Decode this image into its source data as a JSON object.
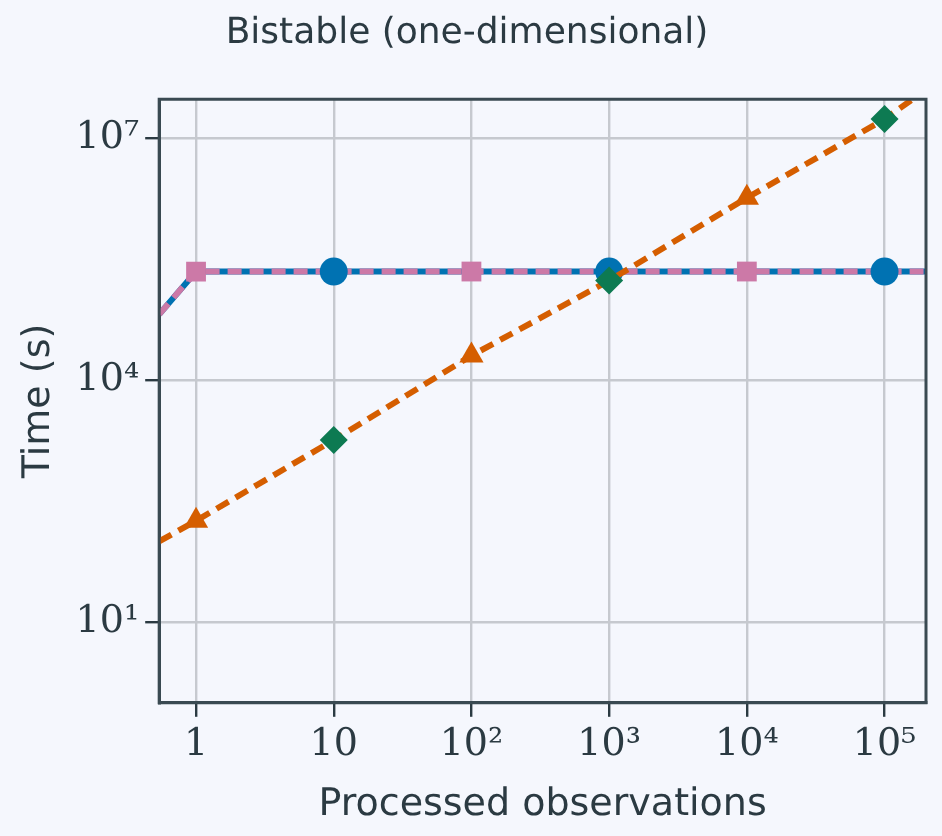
{
  "chart_data": {
    "type": "line",
    "title": "Bistable (one-dimensional)",
    "xlabel": "Processed observations",
    "ylabel": "Time (s)",
    "log": "xy",
    "grid": true,
    "xlim": [
      0.54,
      200000
    ],
    "ylim": [
      1,
      30000000
    ],
    "xticks": [
      1,
      10,
      {
        "value": 100,
        "label": "10²"
      },
      {
        "value": 1000,
        "label": "10³"
      },
      {
        "value": 10000,
        "label": "10⁴"
      },
      {
        "value": 100000,
        "label": "10⁵"
      }
    ],
    "yticks": [
      {
        "value": 10,
        "label": "10¹"
      },
      {
        "value": 10000,
        "label": "10⁴"
      },
      {
        "value": 10000000,
        "label": "10⁷"
      }
    ],
    "series": [
      {
        "type": "line",
        "color": "#0072b2",
        "line_style": "solid",
        "marker": "none",
        "x": [
          0.54,
          1,
          100000,
          200000
        ],
        "values": [
          65000,
          220000,
          220000,
          220000
        ]
      },
      {
        "type": "line",
        "color": "#cc79a7",
        "line_style": "dashed",
        "marker": "none",
        "x": [
          0.54,
          1,
          100000,
          200000
        ],
        "values": [
          65000,
          220000,
          220000,
          220000
        ]
      },
      {
        "type": "scatter",
        "color": "#0072b2",
        "marker": "circle",
        "x": [
          10,
          1000,
          100000
        ],
        "values": [
          220000,
          220000,
          220000
        ]
      },
      {
        "type": "scatter",
        "color": "#cc79a7",
        "marker": "square",
        "x": [
          1,
          100,
          10000
        ],
        "values": [
          220000,
          220000,
          220000
        ]
      },
      {
        "type": "line",
        "color": "#d55e00",
        "line_style": "dashed",
        "marker": "none",
        "x": [
          0.54,
          1,
          10,
          100,
          1000,
          10000,
          100000,
          160000
        ],
        "values": [
          100,
          180,
          1800,
          20000,
          170000,
          1800000,
          17000000,
          30000000
        ]
      },
      {
        "type": "scatter",
        "color": "#0d7a52",
        "marker": "diamond",
        "x": [
          10,
          1000,
          100000
        ],
        "values": [
          1800,
          170000,
          17000000
        ]
      },
      {
        "type": "scatter",
        "color": "#d55e00",
        "marker": "triangle",
        "x": [
          1,
          100,
          10000
        ],
        "values": [
          180,
          20000,
          1800000
        ]
      }
    ]
  }
}
